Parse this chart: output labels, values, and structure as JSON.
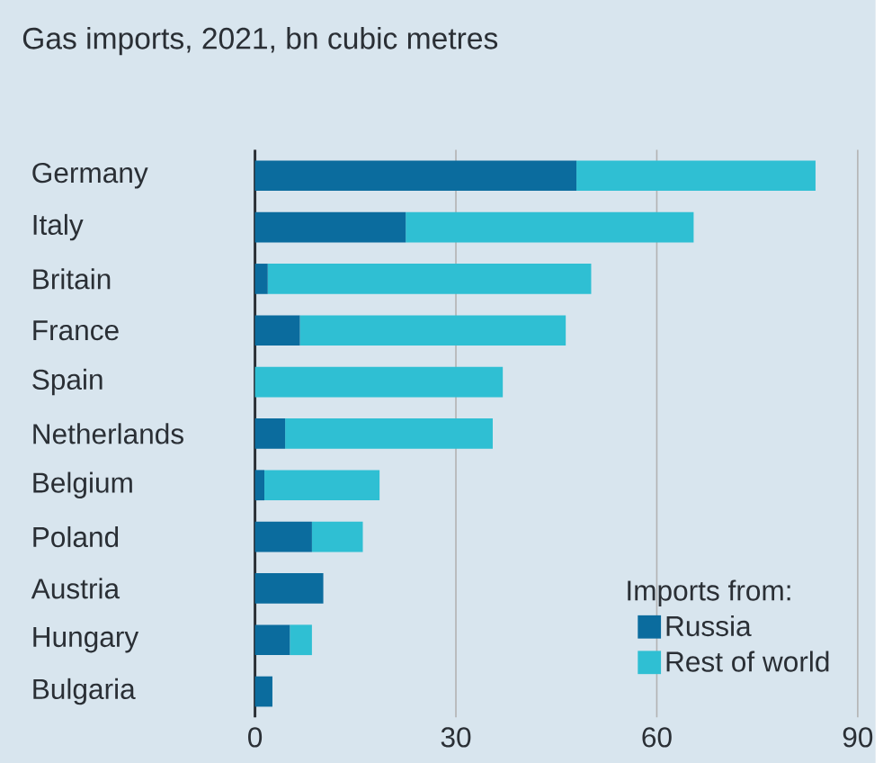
{
  "chart_data": {
    "type": "bar",
    "orientation": "horizontal",
    "stacked": true,
    "title": "Gas imports, 2021, bn cubic metres",
    "legend_title": "Imports from:",
    "categories": [
      "Germany",
      "Italy",
      "Britain",
      "France",
      "Spain",
      "Netherlands",
      "Belgium",
      "Poland",
      "Austria",
      "Hungary",
      "Bulgaria"
    ],
    "series": [
      {
        "name": "Russia",
        "color": "#0b6c9e",
        "values": [
          48.0,
          22.5,
          1.9,
          6.7,
          0,
          4.5,
          1.4,
          8.5,
          10.2,
          5.2,
          2.6
        ]
      },
      {
        "name": "Rest of world",
        "color": "#2fbfd3",
        "values": [
          35.7,
          43.0,
          48.3,
          39.7,
          37.0,
          31.0,
          17.2,
          7.6,
          0,
          3.3,
          0
        ]
      }
    ],
    "xlim": [
      0,
      90
    ],
    "xticks": [
      0,
      30,
      60,
      90
    ],
    "grid": "x",
    "legend": "bottom right"
  }
}
